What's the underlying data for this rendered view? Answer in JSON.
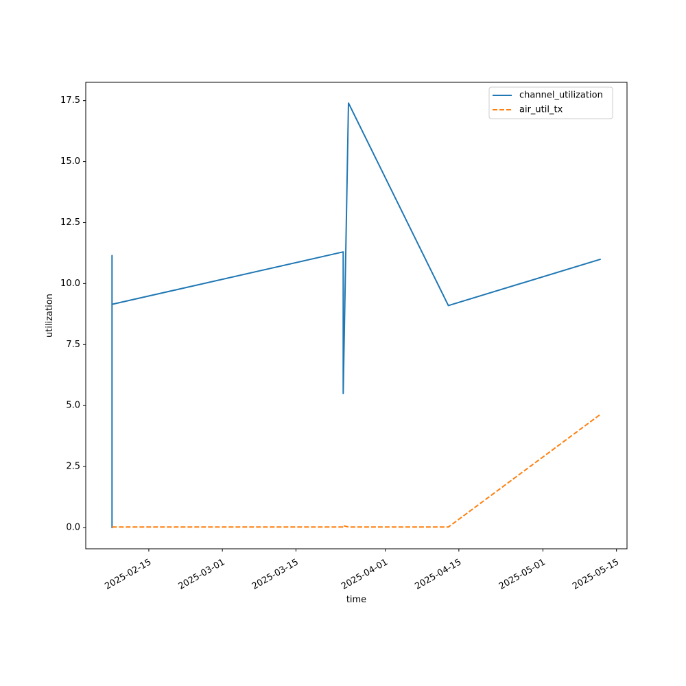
{
  "colors": {
    "background": "#ffffff",
    "axes": "#000000",
    "legend_border": "#cccccc"
  },
  "chart_data": {
    "type": "line",
    "title": "",
    "xlabel": "time",
    "ylabel": "utilization",
    "x_type": "date",
    "xlim": [
      "2025-02-03",
      "2025-05-17"
    ],
    "ylim": [
      -0.87,
      18.25
    ],
    "x_ticks": [
      "2025-02-15",
      "2025-03-01",
      "2025-03-15",
      "2025-04-01",
      "2025-04-15",
      "2025-05-01",
      "2025-05-15"
    ],
    "y_ticks": [
      "0.0",
      "2.5",
      "5.0",
      "7.5",
      "10.0",
      "12.5",
      "15.0",
      "17.5"
    ],
    "grid": false,
    "legend_position": "top-right",
    "series": [
      {
        "name": "channel_utilization",
        "color": "#1f77b4",
        "style": "solid",
        "points": [
          [
            "2025-02-08",
            0.0
          ],
          [
            "2025-02-08",
            11.15
          ],
          [
            "2025-02-08",
            0.0
          ],
          [
            "2025-02-08",
            11.1
          ],
          [
            "2025-02-08",
            9.15
          ],
          [
            "2025-03-24",
            11.3
          ],
          [
            "2025-03-24",
            5.5
          ],
          [
            "2025-03-25",
            17.4
          ],
          [
            "2025-04-13",
            9.1
          ],
          [
            "2025-05-12",
            11.0
          ]
        ]
      },
      {
        "name": "air_util_tx",
        "color": "#ff7f0e",
        "style": "dashed",
        "points": [
          [
            "2025-02-08",
            0.02
          ],
          [
            "2025-03-24",
            0.02
          ],
          [
            "2025-03-24",
            0.08
          ],
          [
            "2025-03-25",
            0.02
          ],
          [
            "2025-04-13",
            0.02
          ],
          [
            "2025-05-12",
            4.65
          ]
        ]
      }
    ]
  }
}
